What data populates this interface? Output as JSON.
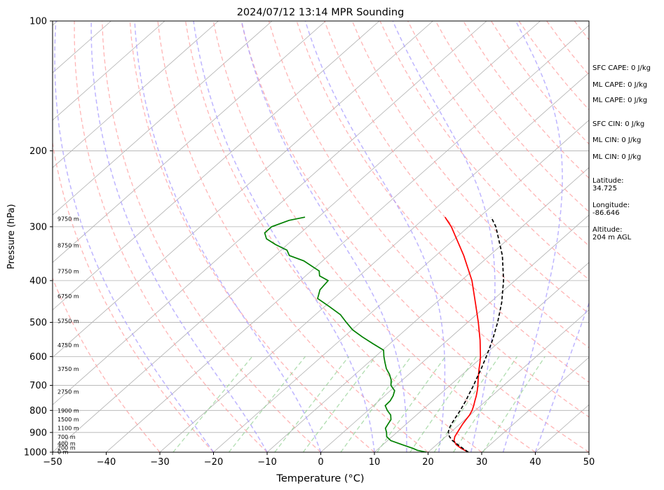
{
  "chart_data": {
    "type": "skew-t",
    "title": "2024/07/12 13:14 MPR Sounding",
    "xlabel": "Temperature (°C)",
    "ylabel": "Pressure (hPa)",
    "xlim": [
      -50,
      50
    ],
    "ylim": [
      1000,
      100
    ],
    "y_scale": "log",
    "grid": true,
    "x_ticks": [
      "−50",
      "−40",
      "−30",
      "−20",
      "−10",
      "0",
      "10",
      "20",
      "30",
      "40",
      "50"
    ],
    "y_ticks": [
      "100",
      "200",
      "300",
      "400",
      "500",
      "600",
      "700",
      "800",
      "900",
      "1000"
    ],
    "height_labels": [
      {
        "text": "0 m",
        "p": 1000
      },
      {
        "text": "200 m",
        "p": 978
      },
      {
        "text": "400 m",
        "p": 956
      },
      {
        "text": "700 m",
        "p": 922
      },
      {
        "text": "1100 m",
        "p": 880
      },
      {
        "text": "1500 m",
        "p": 840
      },
      {
        "text": "1900 m",
        "p": 802
      },
      {
        "text": "2750 m",
        "p": 725
      },
      {
        "text": "3750 m",
        "p": 642
      },
      {
        "text": "4750 m",
        "p": 565
      },
      {
        "text": "5750 m",
        "p": 497
      },
      {
        "text": "6750 m",
        "p": 435
      },
      {
        "text": "7750 m",
        "p": 381
      },
      {
        "text": "8750 m",
        "p": 332
      },
      {
        "text": "9750 m",
        "p": 288
      }
    ],
    "series": [
      {
        "kind": "temperature",
        "color": "#ff0000",
        "p": [
          1000,
          980,
          960,
          940,
          920,
          900,
          880,
          860,
          840,
          820,
          800,
          780,
          760,
          740,
          720,
          700,
          680,
          660,
          640,
          620,
          600,
          550,
          500,
          450,
          400,
          350,
          300,
          285
        ],
        "t": [
          27.5,
          25.4,
          23.6,
          22.4,
          21.7,
          21.3,
          20.9,
          20.5,
          20.2,
          19.9,
          19.4,
          18.7,
          17.9,
          17.1,
          16.2,
          15.2,
          14.1,
          13.0,
          11.9,
          10.8,
          9.6,
          6.1,
          2.0,
          -2.7,
          -8.0,
          -14.8,
          -23.2,
          -26.4
        ]
      },
      {
        "kind": "dewpoint",
        "color": "#008000",
        "p": [
          1000,
          990,
          980,
          960,
          940,
          920,
          900,
          880,
          860,
          840,
          820,
          800,
          780,
          760,
          740,
          720,
          700,
          680,
          660,
          640,
          620,
          600,
          580,
          560,
          540,
          520,
          500,
          480,
          460,
          440,
          420,
          400,
          390,
          380,
          360,
          350,
          340,
          330,
          320,
          310,
          300,
          290,
          285
        ],
        "t": [
          19.7,
          17.6,
          16.4,
          13.5,
          10.6,
          9.0,
          8.1,
          7.0,
          6.6,
          6.2,
          5.2,
          3.6,
          2.2,
          2.1,
          1.6,
          0.8,
          -1.0,
          -2.1,
          -3.6,
          -5.4,
          -6.9,
          -8.4,
          -9.8,
          -13.2,
          -16.6,
          -19.9,
          -22.6,
          -25.3,
          -29.0,
          -33.0,
          -34.4,
          -34.8,
          -37.4,
          -38.5,
          -43.5,
          -47.3,
          -48.9,
          -52.2,
          -55.1,
          -56.7,
          -56.7,
          -54.8,
          -52.5
        ]
      },
      {
        "kind": "parcel",
        "color": "#000000",
        "style": "dashed",
        "p": [
          1000,
          980,
          960,
          940,
          920,
          900,
          880,
          860,
          840,
          820,
          800,
          780,
          760,
          740,
          720,
          700,
          680,
          660,
          640,
          620,
          600,
          550,
          500,
          450,
          400,
          350,
          300,
          285
        ],
        "t": [
          27.5,
          25.7,
          23.9,
          22.1,
          20.7,
          19.6,
          18.9,
          18.4,
          18.0,
          17.6,
          17.2,
          16.7,
          16.2,
          15.6,
          15.0,
          14.4,
          13.7,
          13.0,
          12.3,
          11.5,
          10.7,
          8.4,
          5.6,
          2.2,
          -2.1,
          -7.6,
          -14.9,
          -17.8
        ]
      }
    ],
    "reference_lines": {
      "isotherm_color": "#b0b0b0",
      "dry_adiabat_color": "#ff9c9c",
      "moist_adiabat_color": "#a89cff",
      "mixing_ratio_color": "#8fcf8f"
    }
  },
  "side_panel": {
    "sfc_cape": "SFC CAPE: 0 J/kg",
    "ml_cape_1": "ML CAPE: 0 J/kg",
    "ml_cape_2": "ML CAPE: 0 J/kg",
    "sfc_cin": "SFC CIN: 0 J/kg",
    "ml_cin_1": "ML CIN: 0 J/kg",
    "ml_cin_2": "ML CIN: 0 J/kg",
    "latitude": "Latitude:\n34.725",
    "longitude": "Longitude:\n-86.646",
    "altitude": "Altitude:\n204 m AGL"
  }
}
